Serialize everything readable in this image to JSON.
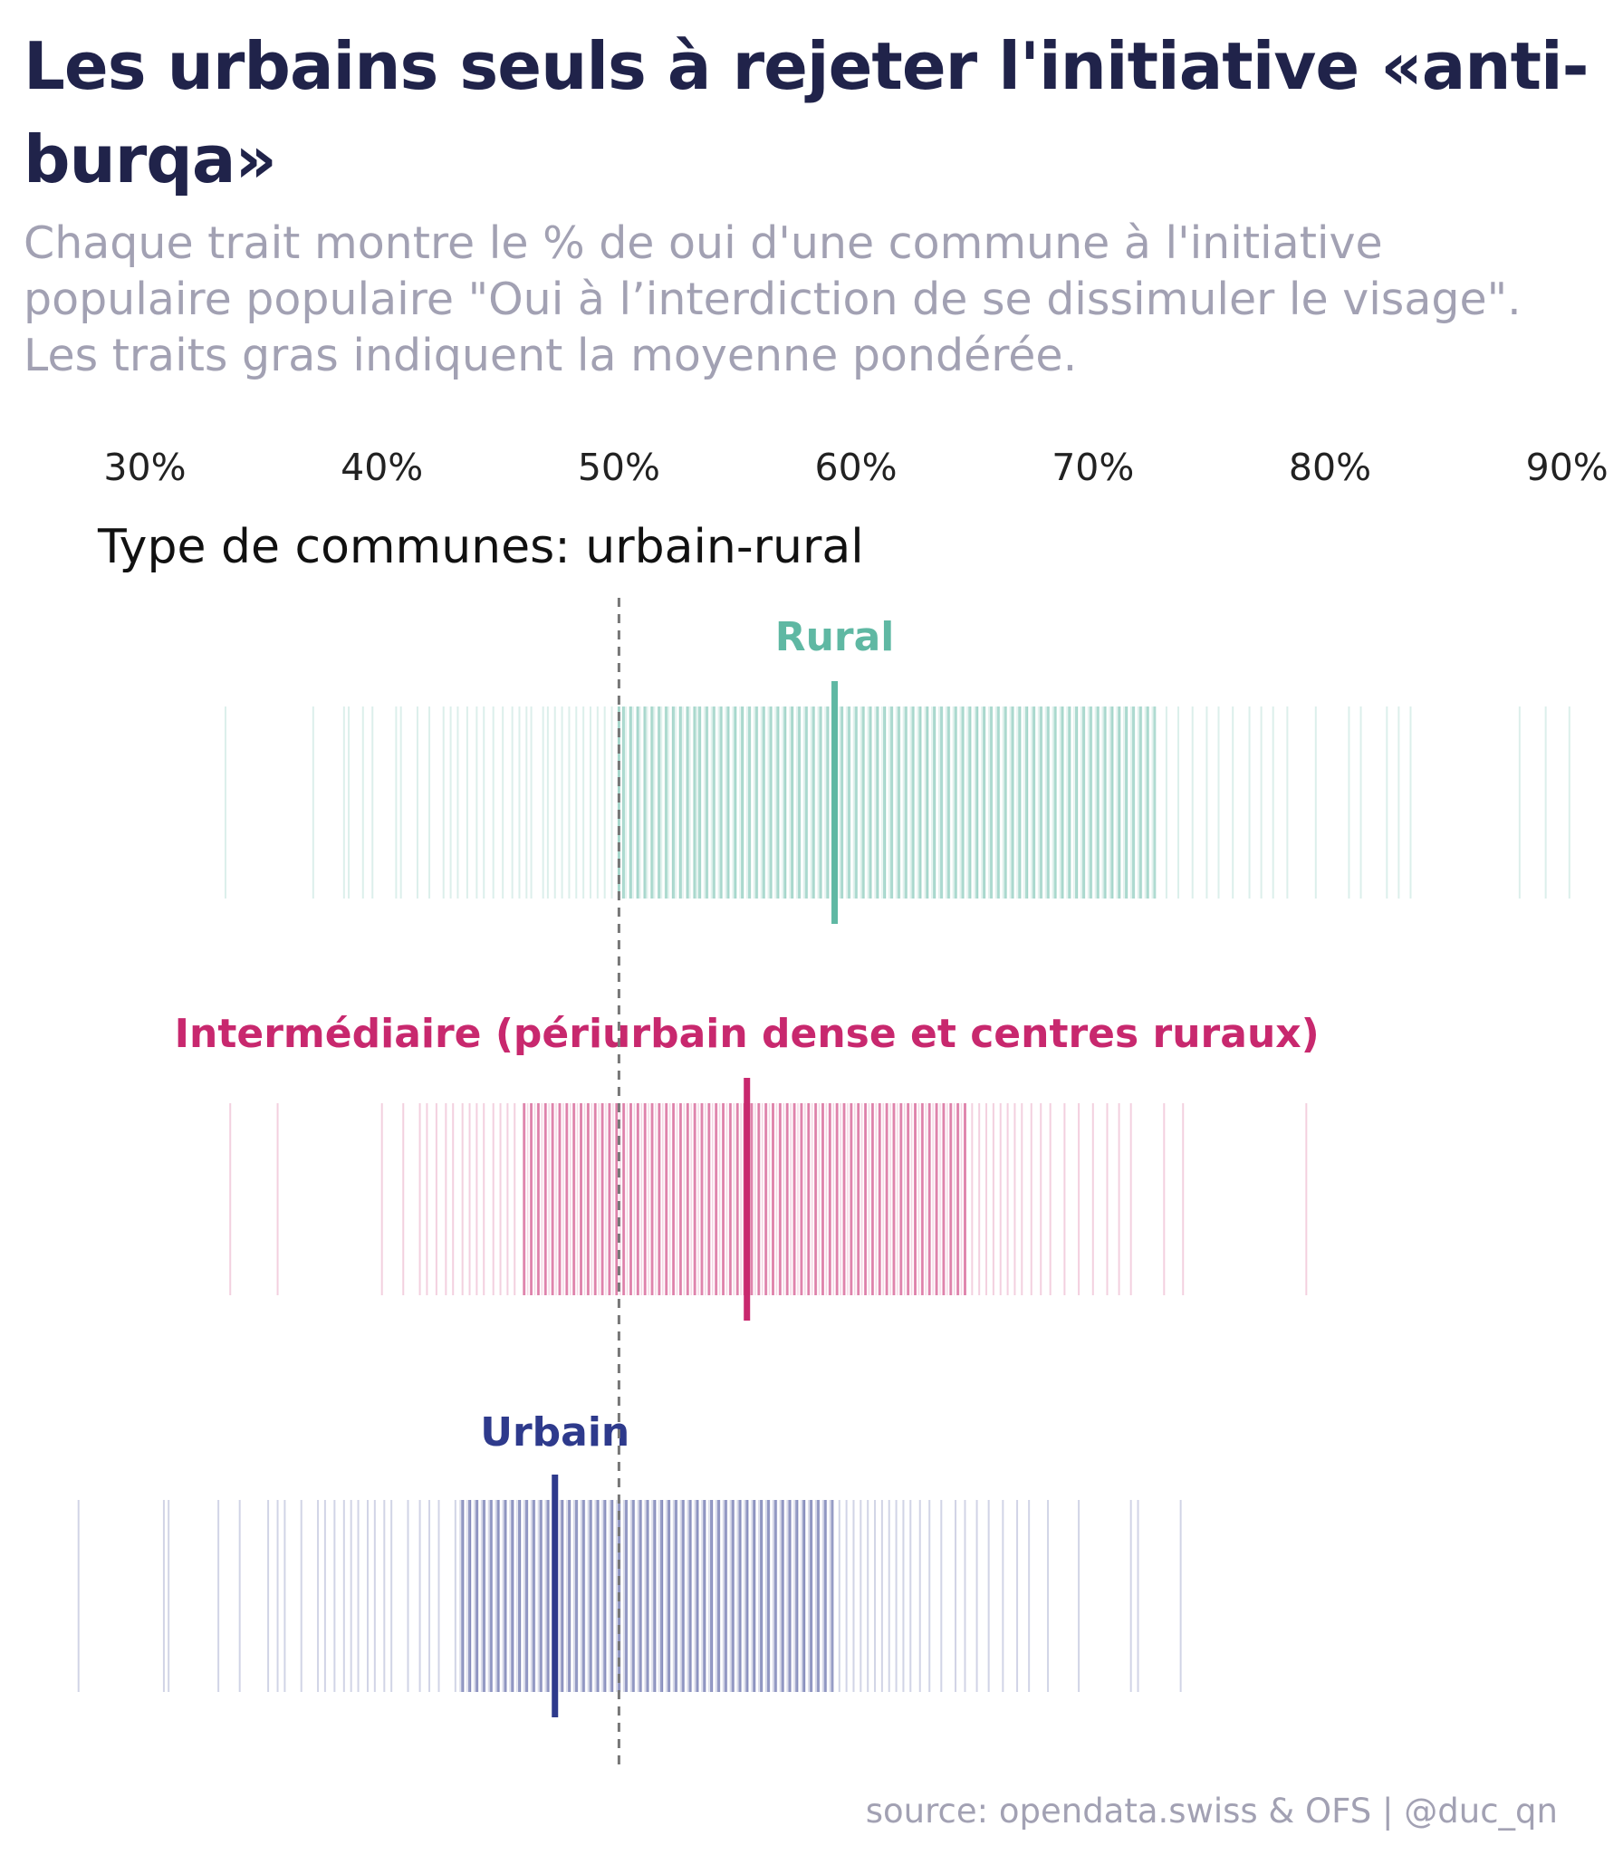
{
  "title": "Les urbains seuls à rejeter l'initiative «anti-burqa»",
  "subtitle": "Chaque trait montre le % de oui d'une commune à l'initiative populaire populaire \"Oui à l’interdiction de se dissimuler le visage\". Les traits gras indiquent la moyenne pondérée.",
  "source": "source: opendata.swiss & OFS | @duc_qn",
  "chart_data": {
    "type": "strip",
    "panel_label": "Type de communes: urbain-rural",
    "x_ticks": [
      "30%",
      "40%",
      "50%",
      "60%",
      "70%",
      "80%",
      "90%"
    ],
    "x_tick_values": [
      30,
      40,
      50,
      60,
      70,
      80,
      90
    ],
    "xlim": [
      30,
      90
    ],
    "reference_line": 50,
    "groups": [
      {
        "name": "Rural",
        "color": "#5fb8a3",
        "weighted_mean": 59.1,
        "values": [
          33.4,
          37.1,
          38.4,
          38.6,
          39.2,
          39.6,
          40.6,
          40.8,
          41.5,
          42.0,
          42.6,
          42.9,
          43.2,
          43.6,
          44.0,
          44.3,
          44.7,
          45.1,
          45.5,
          45.8,
          46.1,
          46.3,
          46.8,
          47.0,
          47.3,
          47.6,
          47.9,
          48.2,
          48.5,
          48.8,
          49.1,
          49.4,
          49.7,
          50.0,
          50.2,
          50.5,
          50.8,
          51.1,
          51.4,
          51.7,
          52.0,
          52.3,
          52.6,
          52.9,
          53.2,
          53.4,
          53.7,
          54.0,
          54.3,
          54.6,
          54.9,
          55.2,
          55.5,
          55.8,
          56.1,
          56.4,
          56.7,
          57.0,
          57.3,
          57.6,
          57.9,
          58.2,
          58.5,
          58.8,
          59.1,
          59.4,
          59.7,
          60.0,
          60.3,
          60.6,
          60.9,
          61.2,
          61.5,
          61.8,
          62.1,
          62.4,
          62.7,
          63.0,
          63.3,
          63.6,
          63.9,
          64.2,
          64.5,
          64.8,
          65.1,
          65.4,
          65.7,
          66.0,
          66.3,
          66.6,
          66.9,
          67.2,
          67.5,
          67.8,
          68.1,
          68.4,
          68.7,
          69.0,
          69.3,
          69.6,
          69.9,
          70.2,
          70.5,
          70.8,
          71.1,
          71.4,
          71.7,
          72.0,
          72.3,
          72.6,
          73.1,
          73.6,
          74.2,
          74.8,
          75.3,
          75.9,
          76.6,
          77.1,
          77.6,
          78.2,
          79.4,
          80.8,
          81.3,
          82.4,
          82.9,
          83.4,
          88.0,
          89.1,
          90.1
        ],
        "heavy_start": 50.0,
        "heavy_end": 72.6
      },
      {
        "name": "Intermédiaire (périurbain dense et centres ruraux)",
        "color": "#c8286e",
        "weighted_mean": 55.4,
        "values": [
          33.6,
          35.6,
          40.0,
          40.9,
          41.6,
          41.9,
          42.3,
          42.7,
          43.0,
          43.4,
          43.7,
          44.0,
          44.3,
          44.7,
          45.0,
          45.3,
          45.6,
          46.0,
          46.3,
          46.6,
          46.9,
          47.2,
          47.5,
          47.8,
          48.1,
          48.4,
          48.7,
          49.0,
          49.3,
          49.6,
          49.9,
          50.2,
          50.5,
          50.8,
          51.1,
          51.4,
          51.7,
          52.0,
          52.3,
          52.6,
          52.9,
          53.2,
          53.5,
          53.8,
          54.1,
          54.4,
          54.7,
          55.0,
          55.3,
          55.6,
          55.9,
          56.2,
          56.5,
          56.8,
          57.1,
          57.4,
          57.7,
          58.0,
          58.3,
          58.6,
          58.9,
          59.2,
          59.5,
          59.8,
          60.1,
          60.4,
          60.7,
          61.0,
          61.3,
          61.6,
          61.9,
          62.2,
          62.5,
          62.8,
          63.1,
          63.4,
          63.7,
          64.0,
          64.3,
          64.6,
          64.9,
          65.2,
          65.5,
          65.8,
          66.1,
          66.4,
          66.7,
          67.0,
          67.4,
          67.8,
          68.2,
          68.8,
          69.4,
          70.0,
          70.6,
          71.1,
          71.6,
          73.0,
          73.8,
          79.0
        ],
        "heavy_start": 46.0,
        "heavy_end": 64.6
      },
      {
        "name": "Urbain",
        "color": "#2e3a8c",
        "weighted_mean": 47.3,
        "values": [
          27.2,
          30.8,
          31.0,
          33.1,
          34.0,
          35.2,
          35.6,
          35.9,
          36.6,
          37.3,
          37.6,
          38.0,
          38.4,
          38.7,
          39.0,
          39.4,
          39.7,
          40.1,
          40.4,
          41.1,
          41.6,
          42.0,
          42.4,
          43.1,
          43.4,
          43.7,
          44.0,
          44.3,
          44.6,
          44.9,
          45.2,
          45.5,
          45.8,
          46.1,
          46.4,
          46.7,
          47.0,
          47.3,
          47.6,
          47.9,
          48.2,
          48.5,
          48.8,
          49.1,
          49.4,
          49.7,
          50.0,
          50.3,
          50.6,
          50.9,
          51.2,
          51.5,
          51.8,
          52.1,
          52.4,
          52.7,
          53.0,
          53.3,
          53.6,
          53.9,
          54.2,
          54.5,
          54.8,
          55.1,
          55.4,
          55.7,
          56.0,
          56.3,
          56.6,
          56.9,
          57.2,
          57.5,
          57.8,
          58.1,
          58.4,
          58.7,
          59.0,
          59.3,
          59.6,
          59.9,
          60.2,
          60.5,
          60.8,
          61.1,
          61.4,
          61.7,
          62.0,
          62.3,
          62.7,
          63.1,
          63.6,
          64.2,
          64.6,
          65.1,
          65.6,
          66.2,
          66.8,
          67.3,
          68.1,
          69.4,
          71.6,
          71.9,
          73.7
        ],
        "heavy_start": 43.3,
        "heavy_end": 59.0
      }
    ]
  }
}
